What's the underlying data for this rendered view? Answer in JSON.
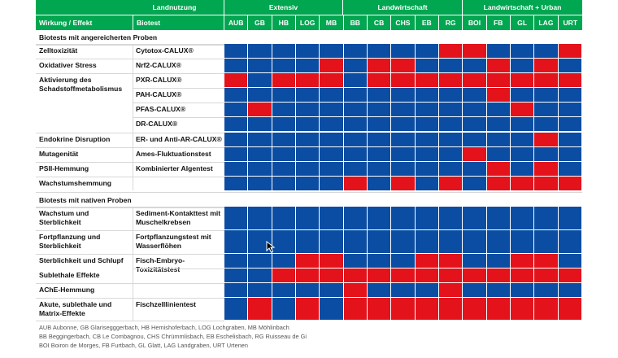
{
  "colors": {
    "green": "#00a650",
    "blue": "#0a4da2",
    "red": "#e3121b"
  },
  "header": {
    "landnutzung": "Landnutzung",
    "groups": [
      "Extensiv",
      "Landwirtschaft",
      "Landwirtschaft + Urban"
    ],
    "col_effect": "Wirkung / Effekt",
    "col_biotest": "Biotest",
    "sites": [
      "AUB",
      "GB",
      "HB",
      "LOG",
      "MB",
      "BB",
      "CB",
      "CHS",
      "EB",
      "RG",
      "BOI",
      "FB",
      "GL",
      "LAG",
      "URT"
    ]
  },
  "sections": {
    "enriched": "Biotests mit angereicherten Proben",
    "native": "Biotests mit nativen Proben"
  },
  "labels": {
    "effects": {
      "zell": "Zelltoxizität",
      "oxi": "Oxidativer Stress",
      "akt": "Aktivierung des Schadstoffmetabolismus",
      "endo": "Endokrine Disruption",
      "muta": "Mutagenität",
      "psii": "PSII-Hemmung",
      "wachs": "Wachstumshemmung",
      "wsterb": "Wachstum und Sterblichkeit",
      "fsterb": "Fortpflanzung und Sterblichkeit",
      "sschlupf": "Sterblichkeit und Schlupf",
      "sublet": "Sublethale Effekte",
      "ache": "AChE-Hemmung",
      "akut": "Akute, sublethale und Matrix-Effekte"
    },
    "tests": {
      "cytotox": "Cytotox-CALUX®",
      "nrf2": "Nrf2-CALUX®",
      "pxr": "PXR-CALUX®",
      "pah": "PAH-CALUX®",
      "pfas": "PFAS-CALUX®",
      "dr": "DR-CALUX®",
      "er": "ER- und Anti-AR-CALUX®",
      "ames": "Ames-Fluktuationstest",
      "algen": "Kombinierter Algentest",
      "sediment": "Sediment-Kontakttest mit Muschelkrebsen",
      "fortpf": "Fortpflanzungstest mit Wasserflöhen",
      "fisch": "Fisch-Embryo-Toxizitätstest",
      "zelllinie": "Fischzelllinientest"
    }
  },
  "rows": {
    "enriched": [
      "BBBBBBBBBRRBBBR",
      "BBBBRBRRBBBRBRB",
      "RBRRRBRRRRRRRRR",
      "BBBBBBBBBBBRBBB",
      "BRBBBBBBBBBBRBB",
      "BBBBBBBBBBBBBBB",
      "BBBBBBBBBBBBBRB",
      "BBBBBBBBBBRBBBB",
      "BBBBBBBBBBBRBRB",
      "BBBBBRBRBRBRRRR"
    ],
    "native": [
      "BBBBBBBBBBBBBBB",
      "BBBBBBBBBBBBBBB",
      "BBBRRBBBRRBBRRB",
      "BBRRRRRRRRRRRRR",
      "BBBBBRBBBRBBBBB",
      "BRBRBRRRRRRRRRR"
    ]
  },
  "legend": [
    "AUB Aubonne, GB Glarisegggerbach, HB Hemishoferbach, LOG Lochgraben, MB Möhlinbach",
    "BB Beggingerbach, CB Le Combagnou, CHS Chrümmlisbach, EB Eschelisbach, RG Ruisseau de Gi",
    "BOI Boiron de Morges, FB Furtbach, GL Glatt, LAG Landgraben, URT Urtenen"
  ]
}
